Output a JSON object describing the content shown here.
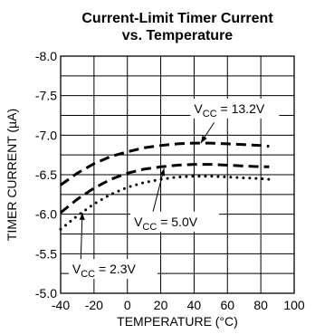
{
  "chart_data": {
    "type": "line",
    "title": "Current-Limit Timer Current",
    "subtitle": "vs. Temperature",
    "xlabel": "TEMPERATURE (°C)",
    "ylabel": "TIMER CURRENT (µA)",
    "xlim": [
      -40,
      100
    ],
    "ylim": [
      -8.0,
      -5.0
    ],
    "y_reversed": true,
    "xticks": [
      "-40",
      "-20",
      "0",
      "20",
      "40",
      "60",
      "80",
      "100"
    ],
    "yticks": [
      "-8.0",
      "-7.5",
      "-7.0",
      "-6.5",
      "-6.0",
      "-5.5",
      "-5.0"
    ],
    "grid": true,
    "series": [
      {
        "label_main": "V",
        "label_sub": "CC",
        "label_rest": " = 13.2V",
        "style": "dashed-thick",
        "x": [
          -40,
          -30,
          -20,
          -10,
          0,
          10,
          20,
          30,
          40,
          50,
          60,
          70,
          80,
          85
        ],
        "y": [
          -6.37,
          -6.52,
          -6.64,
          -6.73,
          -6.79,
          -6.84,
          -6.87,
          -6.89,
          -6.9,
          -6.9,
          -6.89,
          -6.88,
          -6.87,
          -6.86
        ]
      },
      {
        "label_main": "V",
        "label_sub": "CC",
        "label_rest": " = 5.0V",
        "style": "dashed-thick",
        "x": [
          -40,
          -30,
          -20,
          -10,
          0,
          10,
          20,
          30,
          40,
          50,
          60,
          70,
          80,
          85
        ],
        "y": [
          -6.02,
          -6.19,
          -6.33,
          -6.44,
          -6.52,
          -6.57,
          -6.6,
          -6.62,
          -6.63,
          -6.63,
          -6.62,
          -6.61,
          -6.6,
          -6.6
        ]
      },
      {
        "label_main": "V",
        "label_sub": "CC",
        "label_rest": " = 2.3V",
        "style": "dotted",
        "x": [
          -40,
          -30,
          -20,
          -10,
          0,
          10,
          20,
          30,
          40,
          50,
          60,
          70,
          80,
          85
        ],
        "y": [
          -5.81,
          -5.98,
          -6.13,
          -6.25,
          -6.34,
          -6.4,
          -6.44,
          -6.47,
          -6.48,
          -6.48,
          -6.47,
          -6.46,
          -6.45,
          -6.44
        ]
      }
    ],
    "annotations": [
      {
        "series": 0,
        "text_x": 40,
        "text_y": -7.28,
        "point_x": 44,
        "point_y": -6.9,
        "from": [
          52,
          -7.16
        ]
      },
      {
        "series": 1,
        "text_x": 4,
        "text_y": -5.85,
        "point_x": 22,
        "point_y": -6.58,
        "from": [
          15,
          -6.0
        ]
      },
      {
        "series": 2,
        "text_x": -33,
        "text_y": -5.25,
        "point_x": -27,
        "point_y": -6.02,
        "from": [
          -28,
          -5.37
        ]
      }
    ]
  }
}
